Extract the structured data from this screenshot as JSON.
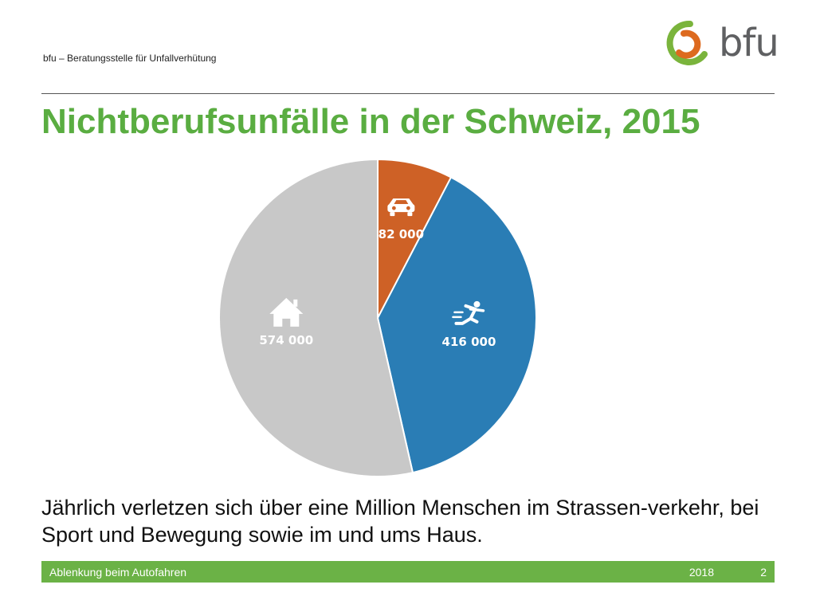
{
  "header": {
    "org_name": "bfu – Beratungsstelle für Unfallverhütung",
    "logo_text": "bfu"
  },
  "title": "Nichtberufsunfälle in der Schweiz, 2015",
  "chart_data": {
    "type": "pie",
    "title": "Nichtberufsunfälle in der Schweiz, 2015",
    "slices": [
      {
        "label": "82 000",
        "value": 82000,
        "icon": "car-icon",
        "color": "#ce6126"
      },
      {
        "label": "416 000",
        "value": 416000,
        "icon": "sport-runner-icon",
        "color": "#2a7db5"
      },
      {
        "label": "574 000",
        "value": 574000,
        "icon": "house-icon",
        "color": "#c8c8c8"
      }
    ],
    "start_angle_deg": 0,
    "direction": "clockwise"
  },
  "caption": "Jährlich verletzen sich über eine Million Menschen im Strassen-verkehr, bei Sport und Bewegung sowie im und ums Haus.",
  "footer": {
    "left": "Ablenkung beim Autofahren",
    "year": "2018",
    "page": "2"
  },
  "colors": {
    "brand_green": "#5aad41",
    "footer_green": "#6bb246",
    "logo_orange": "#dd6a1f",
    "logo_green": "#7ab43c"
  }
}
